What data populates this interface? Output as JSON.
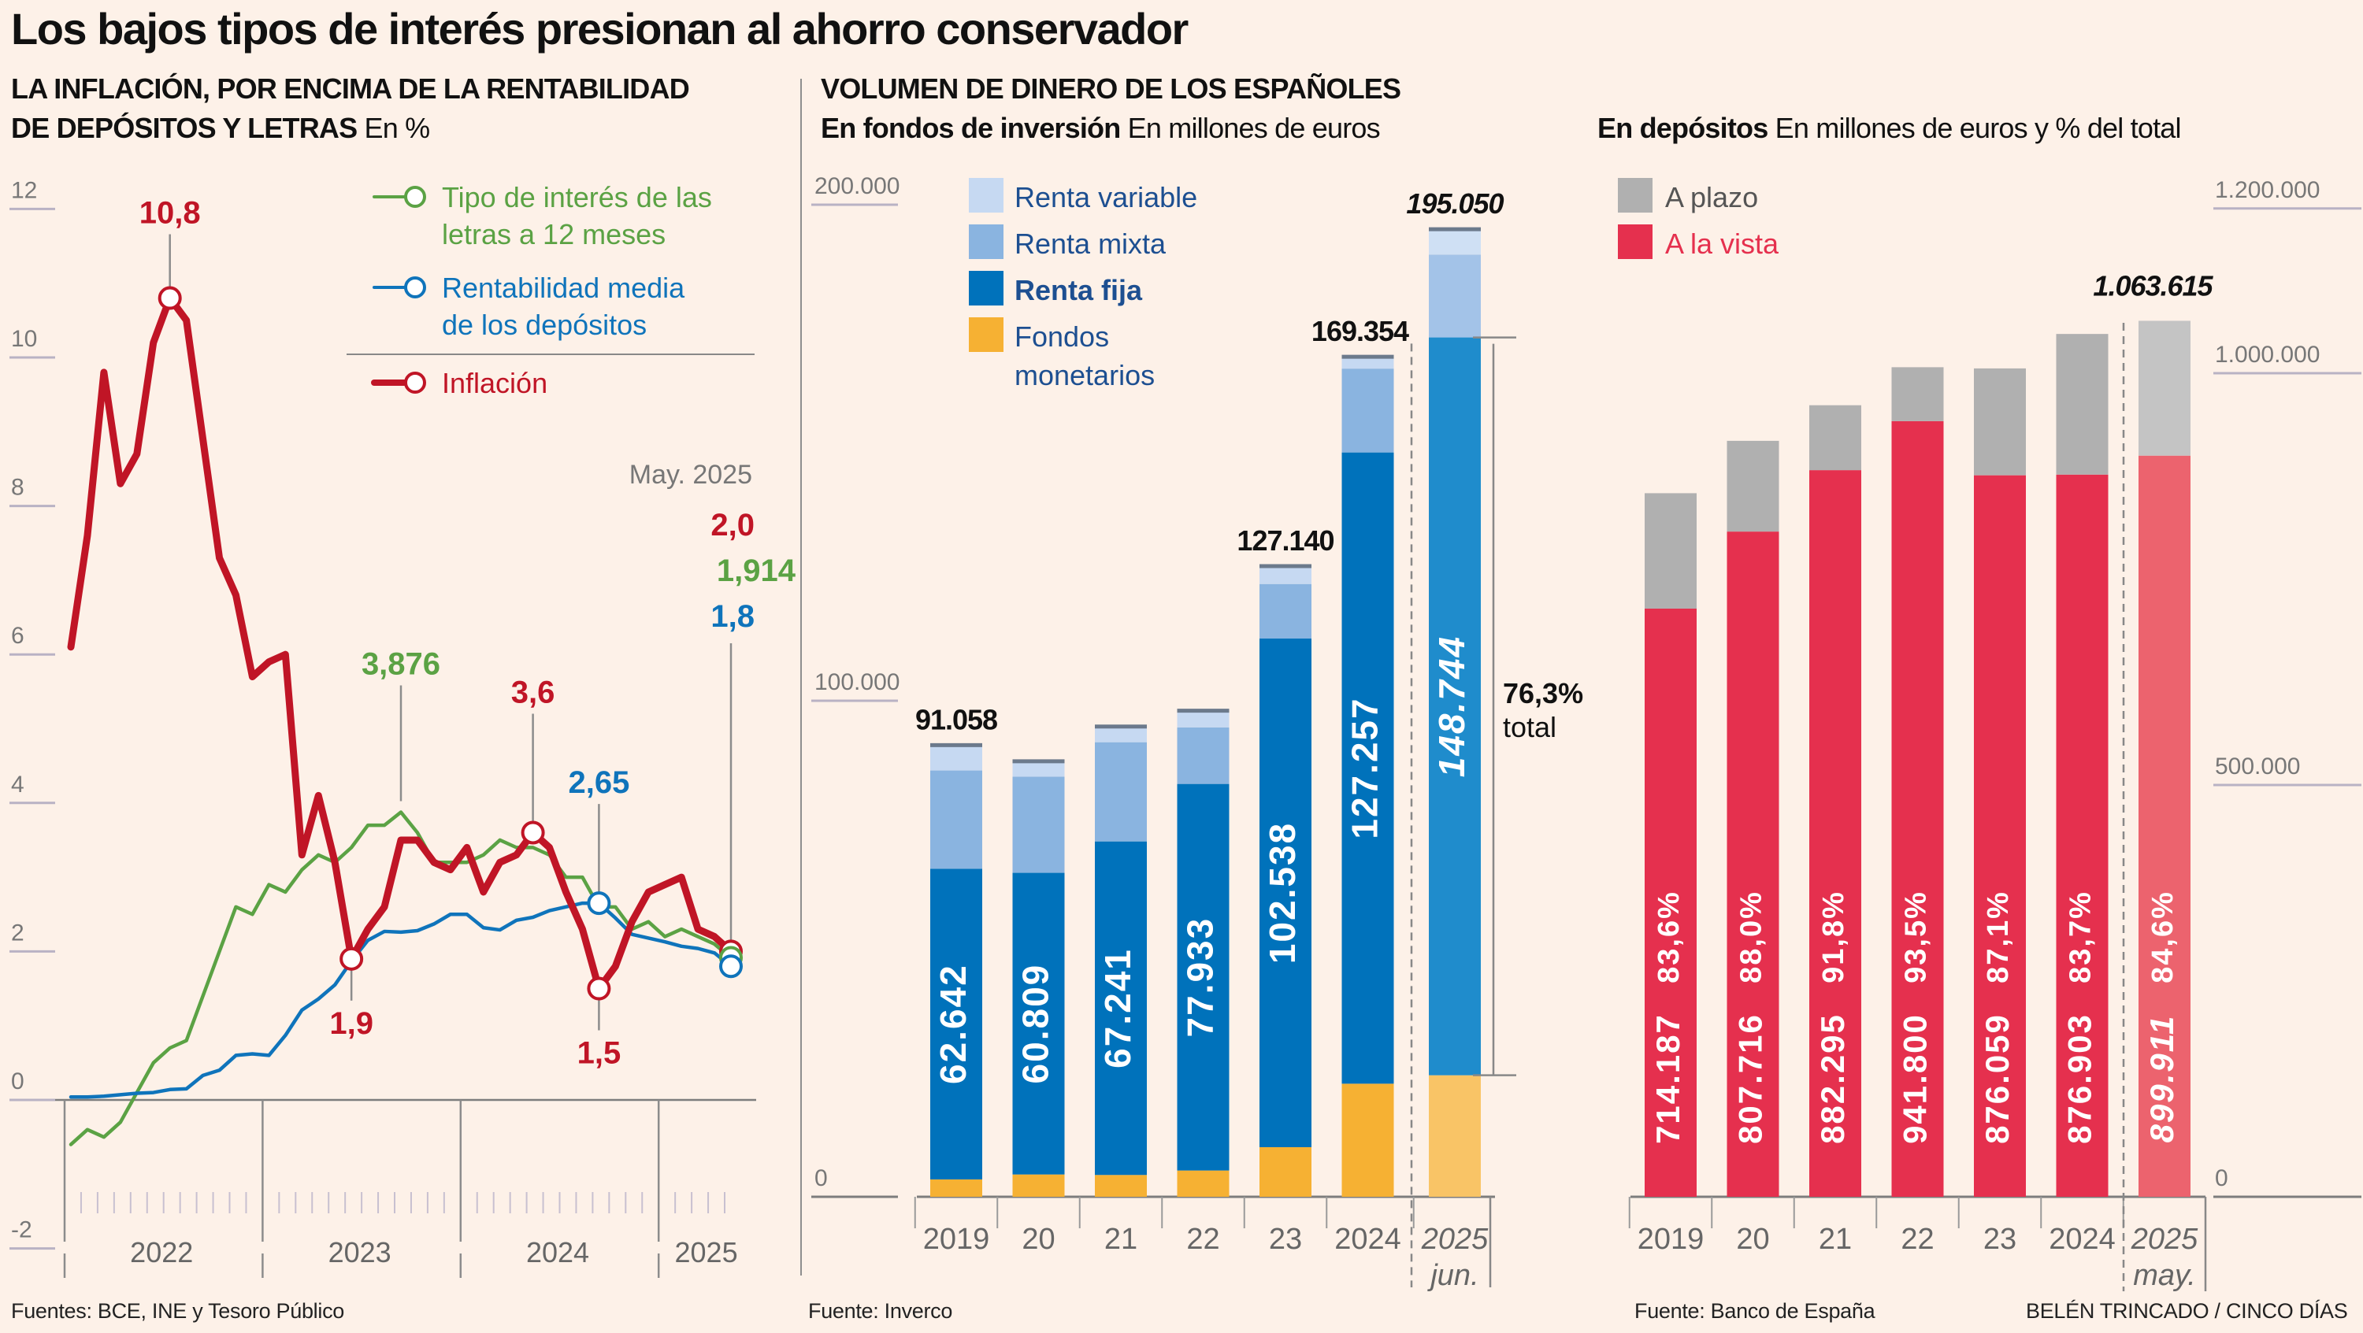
{
  "title": "Los bajos tipos de interés presionan al ahorro conservador",
  "panels": {
    "left": {
      "heading_line1": "LA INFLACIÓN, POR ENCIMA DE LA RENTABILIDAD",
      "heading_line2_bold": "DE DEPÓSITOS Y LETRAS",
      "heading_unit": "En %",
      "source": "Fuentes: BCE, INE y Tesoro Público"
    },
    "middle": {
      "supertitle": "VOLUMEN DE DINERO DE LOS ESPAÑOLES",
      "heading_bold": "En fondos de inversión",
      "heading_unit": "En millones de euros",
      "source": "Fuente: Inverco"
    },
    "right": {
      "heading_bold": "En depósitos",
      "heading_unit": "En millones de euros y % del total",
      "source": "Fuente: Banco de España",
      "credit": "BELÉN TRINCADO / CINCO DÍAS"
    }
  },
  "chart_data": [
    {
      "type": "line",
      "title": "La inflación, por encima de la rentabilidad de depósitos y letras",
      "ylabel": "En %",
      "ylim": [
        -2,
        12
      ],
      "yticks": [
        "12",
        "10",
        "8",
        "6",
        "4",
        "2",
        "0",
        "-2"
      ],
      "ytick_values": [
        12,
        10,
        8,
        6,
        4,
        2,
        0,
        -2
      ],
      "x_start": "2022-01",
      "x_end": "2025-05",
      "year_labels": [
        "2022",
        "2023",
        "2024",
        "2025"
      ],
      "end_label": "May. 2025",
      "grid": false,
      "legend_position": "top-right",
      "series": [
        {
          "name": "Tipo de interés de las letras a 12 meses",
          "legend_line1": "Tipo de interés de las",
          "legend_line2": "letras a 12 meses",
          "color": "#5ba244",
          "values": [
            -0.6,
            -0.4,
            -0.5,
            -0.3,
            0.1,
            0.5,
            0.7,
            0.8,
            1.4,
            2.0,
            2.6,
            2.5,
            2.9,
            2.8,
            3.1,
            3.3,
            3.2,
            3.4,
            3.7,
            3.7,
            3.876,
            3.6,
            3.2,
            3.2,
            3.2,
            3.3,
            3.5,
            3.4,
            3.4,
            3.3,
            3.0,
            3.0,
            2.6,
            2.6,
            2.3,
            2.4,
            2.2,
            2.3,
            2.2,
            2.1,
            1.914
          ],
          "annotations": [
            {
              "index": 20,
              "label": "3,876"
            }
          ],
          "end_value_label": "1,914"
        },
        {
          "name": "Rentabilidad media de los depósitos",
          "legend_line1": "Rentabilidad media",
          "legend_line2": "de los depósitos",
          "color": "#0f74bb",
          "values": [
            0.04,
            0.04,
            0.05,
            0.07,
            0.09,
            0.1,
            0.14,
            0.15,
            0.33,
            0.4,
            0.6,
            0.62,
            0.6,
            0.87,
            1.21,
            1.36,
            1.55,
            1.87,
            2.15,
            2.27,
            2.26,
            2.28,
            2.37,
            2.5,
            2.5,
            2.32,
            2.29,
            2.42,
            2.46,
            2.55,
            2.6,
            2.65,
            2.65,
            2.45,
            2.23,
            2.18,
            2.13,
            2.07,
            2.04,
            1.98,
            1.8
          ],
          "annotations": [
            {
              "index": 32,
              "label": "2,65"
            }
          ],
          "end_value_label": "1,8"
        },
        {
          "name": "Inflación",
          "legend_line1": "Inflación",
          "legend_line2": "",
          "color": "#c01526",
          "values": [
            6.1,
            7.6,
            9.8,
            8.3,
            8.7,
            10.2,
            10.8,
            10.5,
            8.9,
            7.3,
            6.8,
            5.7,
            5.9,
            6.0,
            3.3,
            4.1,
            3.2,
            1.9,
            2.3,
            2.6,
            3.5,
            3.5,
            3.2,
            3.1,
            3.4,
            2.8,
            3.2,
            3.3,
            3.6,
            3.4,
            2.8,
            2.3,
            1.5,
            1.8,
            2.4,
            2.8,
            2.9,
            3.0,
            2.3,
            2.2,
            2.0
          ],
          "annotations": [
            {
              "index": 6,
              "label": "10,8"
            },
            {
              "index": 17,
              "label": "1,9"
            },
            {
              "index": 28,
              "label": "3,6"
            },
            {
              "index": 32,
              "label": "1,5"
            }
          ],
          "end_value_label": "2,0"
        }
      ]
    },
    {
      "type": "bar",
      "stacked": true,
      "title": "En fondos de inversión",
      "ylabel": "En millones de euros",
      "ylim": [
        0,
        200000
      ],
      "yticks": [
        "200.000",
        "100.000",
        "0"
      ],
      "ytick_values": [
        200000,
        100000,
        0
      ],
      "categories": [
        "2019",
        "20",
        "21",
        "22",
        "23",
        "2024",
        "2025"
      ],
      "category_sublabels": [
        "",
        "",
        "",
        "",
        "",
        "",
        "jun."
      ],
      "legend_position": "top-left",
      "series": [
        {
          "name": "Fondos monetarios",
          "legend_line1": "Fondos",
          "legend_line2": "monetarios",
          "color": "#f6b133",
          "values": [
            3500,
            4500,
            4400,
            5300,
            10000,
            22800,
            24500
          ]
        },
        {
          "name": "Renta fija",
          "legend_line1": "Renta fija",
          "color": "#0072bb",
          "values": [
            62642,
            60809,
            67241,
            77933,
            102538,
            127257,
            148744
          ]
        },
        {
          "name": "Renta mixta",
          "legend_line1": "Renta mixta",
          "color": "#8ab4e0",
          "values": [
            19800,
            19400,
            20000,
            11400,
            11000,
            16900,
            16700
          ]
        },
        {
          "name": "Renta variable",
          "legend_line1": "Renta variable",
          "color": "#c6d9f2",
          "values": [
            5116,
            3091,
            3159,
            3367,
            3602,
            2397,
            5106
          ]
        }
      ],
      "totals": [
        91058,
        null,
        null,
        null,
        127140,
        169354,
        195050
      ],
      "total_labels": [
        "91.058",
        "",
        "",
        "",
        "127.140",
        "169.354",
        "195.050"
      ],
      "segment_labels": [
        "62.642",
        "60.809",
        "67.241",
        "77.933",
        "102.538",
        "127.257",
        "148.744"
      ],
      "annotation": {
        "value": "76,3%",
        "text": "total"
      }
    },
    {
      "type": "bar",
      "stacked": true,
      "title": "En depósitos",
      "ylabel": "En millones de euros y % del total",
      "ylim": [
        0,
        1200000
      ],
      "yticks": [
        "1.200.000",
        "1.000.000",
        "500.000",
        "0"
      ],
      "ytick_values": [
        1200000,
        1000000,
        500000,
        0
      ],
      "categories": [
        "2019",
        "20",
        "21",
        "22",
        "23",
        "2024",
        "2025"
      ],
      "category_sublabels": [
        "",
        "",
        "",
        "",
        "",
        "",
        "may."
      ],
      "legend_position": "top-left",
      "series": [
        {
          "name": "A la vista",
          "color": "#e5304e",
          "values": [
            714187,
            807716,
            882295,
            941800,
            876059,
            876903,
            899911
          ]
        },
        {
          "name": "A plazo",
          "color": "#b0b0b0",
          "values": [
            140103,
            110177,
            78817,
            65481,
            129770,
            170760,
            163704
          ]
        }
      ],
      "value_labels": [
        "714.187",
        "807.716",
        "882.295",
        "941.800",
        "876.059",
        "876.903",
        "899.911"
      ],
      "pct_labels": [
        "83,6%",
        "88,0%",
        "91,8%",
        "93,5%",
        "87,1%",
        "83,7%",
        "84,6%"
      ],
      "total_labels": [
        "",
        "",
        "",
        "",
        "",
        "",
        "1.063.615"
      ]
    }
  ]
}
